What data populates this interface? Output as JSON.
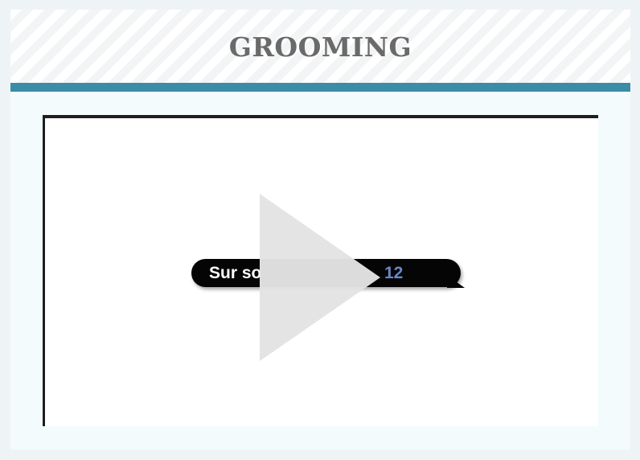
{
  "header": {
    "title": "GROOMING",
    "accent_color": "#3b8ca7"
  },
  "video": {
    "caption_visible_left": "Sur so",
    "caption_visible_right": "12",
    "caption_number_color": "#6a86c8",
    "play_icon": "play-icon"
  }
}
